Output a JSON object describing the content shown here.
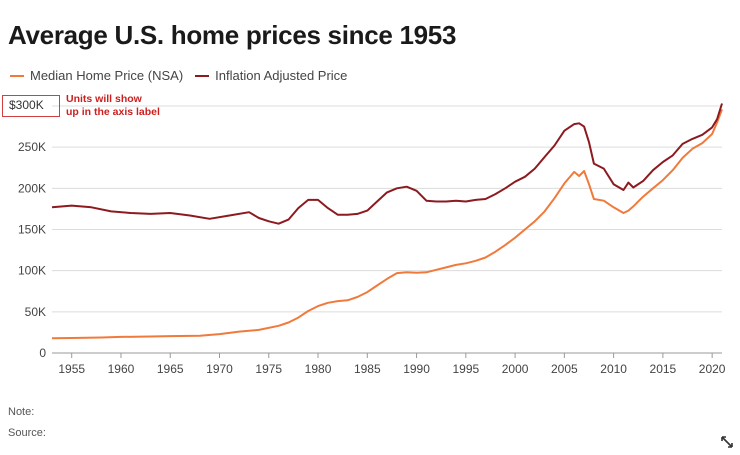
{
  "header": {
    "title": "Average U.S. home prices since 1953"
  },
  "annotation": {
    "label": "$300K",
    "note_line1": "Units will show",
    "note_line2": "up in the axis label"
  },
  "footer": {
    "note": "Note:",
    "source": "Source:"
  },
  "icons": {
    "expand": "expand-icon"
  },
  "chart_data": {
    "type": "line",
    "title": "Average U.S. home prices since 1953",
    "xlabel": "",
    "ylabel": "",
    "xlim": [
      1953,
      2021
    ],
    "ylim": [
      0,
      300000
    ],
    "y_ticks": [
      0,
      50000,
      100000,
      150000,
      200000,
      250000,
      300000
    ],
    "y_tick_labels": [
      "0",
      "50K",
      "100K",
      "150K",
      "200K",
      "250K",
      "$300K"
    ],
    "x_ticks": [
      1955,
      1960,
      1965,
      1970,
      1975,
      1980,
      1985,
      1990,
      1995,
      2000,
      2005,
      2010,
      2015,
      2020
    ],
    "x_tick_labels": [
      "1955",
      "1960",
      "1965",
      "1970",
      "1975",
      "1980",
      "1985",
      "1990",
      "1995",
      "2000",
      "2005",
      "2010",
      "2015",
      "2020"
    ],
    "grid": true,
    "legend_position": "top-left",
    "series": [
      {
        "name": "Median Home Price (NSA)",
        "color": "#f07a3c",
        "x": [
          1953,
          1955,
          1958,
          1960,
          1963,
          1965,
          1968,
          1970,
          1972,
          1974,
          1976,
          1977,
          1978,
          1979,
          1980,
          1981,
          1982,
          1983,
          1984,
          1985,
          1986,
          1987,
          1988,
          1989,
          1990,
          1991,
          1992,
          1993,
          1994,
          1995,
          1996,
          1997,
          1998,
          1999,
          2000,
          2001,
          2002,
          2003,
          2004,
          2005,
          2006,
          2006.5,
          2007,
          2007.5,
          2008,
          2009,
          2010,
          2011,
          2011.5,
          2012,
          2013,
          2014,
          2015,
          2016,
          2017,
          2018,
          2019,
          2020,
          2020.5,
          2021
        ],
        "y": [
          18000,
          18200,
          18800,
          19500,
          20000,
          20500,
          21000,
          23000,
          26000,
          28000,
          33000,
          37000,
          43000,
          51000,
          57000,
          61000,
          63000,
          64000,
          68000,
          74000,
          82000,
          90000,
          97000,
          98000,
          97500,
          98000,
          101000,
          104000,
          107000,
          109000,
          112000,
          116000,
          123000,
          131000,
          140000,
          150000,
          160000,
          172000,
          188000,
          206000,
          220000,
          215000,
          221000,
          205000,
          187000,
          185000,
          177000,
          170000,
          173000,
          178000,
          190000,
          200000,
          210000,
          222000,
          237000,
          248000,
          255000,
          266000,
          280000,
          296000
        ]
      },
      {
        "name": "Inflation Adjusted Price",
        "color": "#8c1a1f",
        "x": [
          1953,
          1955,
          1957,
          1959,
          1961,
          1963,
          1965,
          1967,
          1969,
          1971,
          1973,
          1974,
          1975,
          1976,
          1977,
          1978,
          1979,
          1980,
          1981,
          1982,
          1983,
          1984,
          1985,
          1986,
          1987,
          1988,
          1989,
          1990,
          1991,
          1992,
          1993,
          1994,
          1995,
          1996,
          1997,
          1998,
          1999,
          2000,
          2001,
          2002,
          2003,
          2004,
          2005,
          2006,
          2006.5,
          2007,
          2007.5,
          2008,
          2009,
          2010,
          2011,
          2011.5,
          2012,
          2013,
          2014,
          2015,
          2016,
          2017,
          2018,
          2019,
          2020,
          2020.5,
          2021
        ],
        "y": [
          177000,
          179000,
          177000,
          172000,
          170000,
          169000,
          170000,
          167000,
          163000,
          167000,
          171000,
          164000,
          160000,
          157000,
          162000,
          176000,
          186000,
          186000,
          176000,
          168000,
          168000,
          169000,
          173000,
          184000,
          195000,
          200000,
          202000,
          197000,
          185000,
          184000,
          184000,
          185000,
          184000,
          186000,
          187000,
          193000,
          200000,
          208000,
          214000,
          224000,
          238000,
          252000,
          270000,
          278000,
          279000,
          275000,
          256000,
          230000,
          224000,
          205000,
          198000,
          207000,
          201000,
          209000,
          222000,
          232000,
          240000,
          254000,
          260000,
          265000,
          274000,
          284000,
          303000
        ]
      }
    ]
  }
}
